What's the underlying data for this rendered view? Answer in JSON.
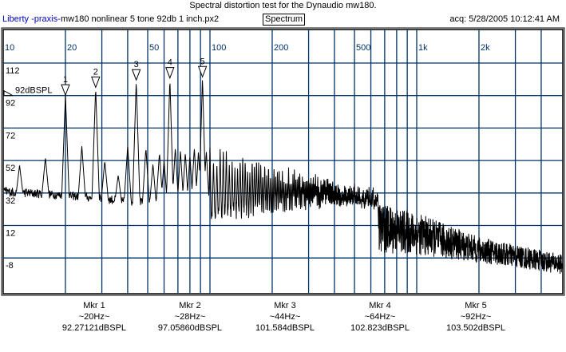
{
  "header": {
    "title": "Spectral distortion test for the Dynaudio mw180.",
    "brand": "Liberty -praxis-",
    "file": "mw180 nonlinear 5 tone 92db 1 inch.px2",
    "mode": "Spectrum",
    "acq": "acq: 5/28/2005 10:12:41 AM"
  },
  "colors": {
    "grid": "#003366",
    "trace": "#000000",
    "brand": "#0000c8"
  },
  "chart_data": {
    "type": "line",
    "title": "Spectral distortion test for the Dynaudio mw180.",
    "xscale": "log",
    "xlim": [
      10,
      5100
    ],
    "ylim": [
      -28,
      132
    ],
    "grid": true,
    "x_tick_labels": [
      {
        "f": 10,
        "label": "10"
      },
      {
        "f": 20,
        "label": "20"
      },
      {
        "f": 50,
        "label": "50"
      },
      {
        "f": 100,
        "label": "100"
      },
      {
        "f": 200,
        "label": "200"
      },
      {
        "f": 500,
        "label": "500"
      },
      {
        "f": 1000,
        "label": "1k"
      },
      {
        "f": 2000,
        "label": "2k"
      }
    ],
    "x_grid": [
      20,
      30,
      40,
      50,
      60,
      70,
      80,
      90,
      100,
      200,
      300,
      400,
      500,
      600,
      700,
      800,
      900,
      1000,
      2000,
      3000,
      4000
    ],
    "y_ticks": [
      112,
      92,
      72,
      52,
      32,
      12,
      -8
    ],
    "y_tick_labels": [
      "112",
      "92",
      "72",
      "52",
      "32",
      "12",
      "-8"
    ],
    "reference": {
      "value": 92,
      "label": "92dBSPL"
    },
    "noise_floor": [
      [
        10,
        30,
        36
      ],
      [
        20,
        28,
        33
      ],
      [
        40,
        24,
        30
      ],
      [
        100,
        15,
        24
      ],
      [
        300,
        -3,
        37
      ],
      [
        1000,
        -6,
        20
      ],
      [
        2000,
        -11,
        5
      ],
      [
        5100,
        -18,
        -6
      ]
    ],
    "peaks": [
      [
        12,
        49
      ],
      [
        16,
        54
      ],
      [
        20,
        92.3
      ],
      [
        24,
        61
      ],
      [
        28,
        97.1
      ],
      [
        31,
        52
      ],
      [
        36,
        43
      ],
      [
        40,
        61
      ],
      [
        44,
        101.6
      ],
      [
        49,
        60
      ],
      [
        53,
        50
      ],
      [
        57,
        57
      ],
      [
        60,
        52
      ],
      [
        64,
        102.8
      ],
      [
        68,
        60
      ],
      [
        72,
        58
      ],
      [
        76,
        57
      ],
      [
        80,
        55
      ],
      [
        84,
        60
      ],
      [
        88,
        58
      ],
      [
        92,
        103.5
      ],
      [
        96,
        58
      ]
    ],
    "intermod_comb": {
      "start": 100,
      "end": 650,
      "step": 4,
      "level_start": 61,
      "level_end": 35
    },
    "markers": [
      {
        "id": "1",
        "name": "Mkr 1",
        "freq": "~20Hz~",
        "f": 20,
        "value": 92.27121,
        "value_label": "92.27121dBSPL"
      },
      {
        "id": "2",
        "name": "Mkr 2",
        "freq": "~28Hz~",
        "f": 28,
        "value": 97.0586,
        "value_label": "97.05860dBSPL"
      },
      {
        "id": "3",
        "name": "Mkr 3",
        "freq": "~44Hz~",
        "f": 44,
        "value": 101.584,
        "value_label": "101.584dBSPL"
      },
      {
        "id": "4",
        "name": "Mkr 4",
        "freq": "~64Hz~",
        "f": 64,
        "value": 102.823,
        "value_label": "102.823dBSPL"
      },
      {
        "id": "5",
        "name": "Mkr 5",
        "freq": "~92Hz~",
        "f": 92,
        "value": 103.502,
        "value_label": "103.502dBSPL"
      }
    ]
  }
}
